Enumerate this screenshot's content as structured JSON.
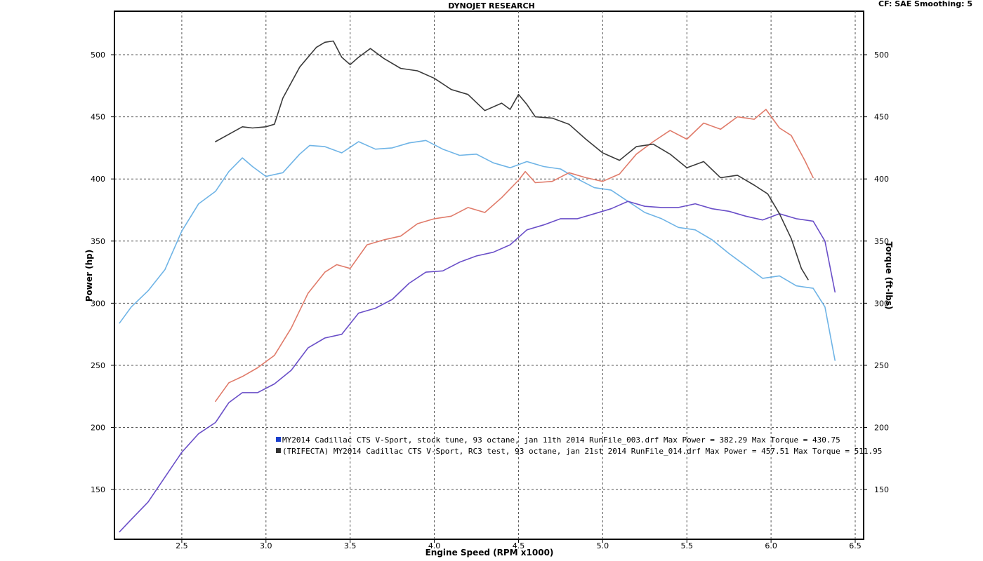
{
  "header": {
    "title": "DYNOJET RESEARCH",
    "settings": "CF: SAE  Smoothing: 5"
  },
  "chart_data": {
    "type": "line",
    "xlabel": "Engine Speed (RPM x1000)",
    "ylabel": "Power (hp)",
    "y2label": "Torque (ft-lbs)",
    "xlim": [
      2.1,
      6.55
    ],
    "ylim": [
      110,
      535
    ],
    "y2lim": [
      110,
      535
    ],
    "x_ticks": [
      "2.5",
      "3.0",
      "3.5",
      "4.0",
      "4.5",
      "5.0",
      "5.5",
      "6.0",
      "6.5"
    ],
    "y_ticks": [
      "150",
      "200",
      "250",
      "300",
      "350",
      "400",
      "450",
      "500"
    ],
    "y2_ticks": [
      "150",
      "200",
      "250",
      "300",
      "350",
      "400",
      "450",
      "500"
    ],
    "grid": true,
    "legend": [
      {
        "text": "MY2014 Cadillac CTS V-Sport, stock tune, 93 octane, jan 11th 2014 RunFile_003.drf Max Power = 382.29    Max Torque = 430.75",
        "color": "#1a3fcc"
      },
      {
        "text": "(TRIFECTA) MY2014 Cadillac CTS V-Sport, RC3 test, 93 octane, jan 21st 2014 RunFile_014.drf Max Power = 457.51    Max Torque = 511.95",
        "color": "#333333"
      }
    ],
    "series": [
      {
        "axis": "y",
        "color": "#6fb4e6",
        "points": [
          [
            2.13,
            284
          ],
          [
            2.2,
            297
          ],
          [
            2.3,
            310
          ],
          [
            2.4,
            327
          ],
          [
            2.5,
            358
          ],
          [
            2.6,
            380
          ],
          [
            2.7,
            390
          ],
          [
            2.78,
            406
          ],
          [
            2.86,
            417
          ],
          [
            2.92,
            410
          ],
          [
            3.0,
            402
          ],
          [
            3.1,
            405
          ],
          [
            3.2,
            420
          ],
          [
            3.26,
            427
          ],
          [
            3.35,
            426
          ],
          [
            3.45,
            421
          ],
          [
            3.55,
            430
          ],
          [
            3.65,
            424
          ],
          [
            3.75,
            425
          ],
          [
            3.85,
            429
          ],
          [
            3.95,
            431
          ],
          [
            4.05,
            424
          ],
          [
            4.15,
            419
          ],
          [
            4.25,
            420
          ],
          [
            4.35,
            413
          ],
          [
            4.45,
            409
          ],
          [
            4.55,
            414
          ],
          [
            4.65,
            410
          ],
          [
            4.75,
            408
          ],
          [
            4.85,
            400
          ],
          [
            4.95,
            393
          ],
          [
            5.05,
            391
          ],
          [
            5.15,
            382
          ],
          [
            5.25,
            373
          ],
          [
            5.35,
            368
          ],
          [
            5.45,
            361
          ],
          [
            5.55,
            359
          ],
          [
            5.65,
            351
          ],
          [
            5.75,
            340
          ],
          [
            5.85,
            330
          ],
          [
            5.95,
            320
          ],
          [
            6.05,
            322
          ],
          [
            6.15,
            314
          ],
          [
            6.25,
            312
          ],
          [
            6.32,
            297
          ],
          [
            6.38,
            254
          ]
        ]
      },
      {
        "axis": "y2",
        "color": "#e07b6a",
        "points": [
          [
            2.7,
            221
          ],
          [
            2.78,
            236
          ],
          [
            2.86,
            241
          ],
          [
            2.95,
            248
          ],
          [
            3.05,
            258
          ],
          [
            3.15,
            280
          ],
          [
            3.25,
            308
          ],
          [
            3.35,
            325
          ],
          [
            3.42,
            331
          ],
          [
            3.5,
            328
          ],
          [
            3.6,
            347
          ],
          [
            3.7,
            351
          ],
          [
            3.8,
            354
          ],
          [
            3.9,
            364
          ],
          [
            4.0,
            368
          ],
          [
            4.1,
            370
          ],
          [
            4.2,
            377
          ],
          [
            4.3,
            373
          ],
          [
            4.4,
            385
          ],
          [
            4.5,
            399
          ],
          [
            4.54,
            406
          ],
          [
            4.6,
            397
          ],
          [
            4.7,
            398
          ],
          [
            4.8,
            405
          ],
          [
            4.9,
            401
          ],
          [
            5.0,
            398
          ],
          [
            5.1,
            404
          ],
          [
            5.2,
            420
          ],
          [
            5.3,
            430
          ],
          [
            5.4,
            439
          ],
          [
            5.5,
            432
          ],
          [
            5.6,
            445
          ],
          [
            5.7,
            440
          ],
          [
            5.8,
            450
          ],
          [
            5.9,
            448
          ],
          [
            5.97,
            456
          ],
          [
            6.05,
            441
          ],
          [
            6.12,
            435
          ],
          [
            6.2,
            415
          ],
          [
            6.25,
            401
          ]
        ]
      },
      {
        "axis": "y",
        "color": "#6a4fc8",
        "points": [
          [
            2.13,
            116
          ],
          [
            2.2,
            126
          ],
          [
            2.3,
            140
          ],
          [
            2.4,
            160
          ],
          [
            2.5,
            180
          ],
          [
            2.6,
            195
          ],
          [
            2.7,
            204
          ],
          [
            2.78,
            220
          ],
          [
            2.86,
            228
          ],
          [
            2.95,
            228
          ],
          [
            3.05,
            235
          ],
          [
            3.15,
            246
          ],
          [
            3.25,
            264
          ],
          [
            3.35,
            272
          ],
          [
            3.45,
            275
          ],
          [
            3.55,
            292
          ],
          [
            3.65,
            296
          ],
          [
            3.75,
            303
          ],
          [
            3.85,
            316
          ],
          [
            3.95,
            325
          ],
          [
            4.05,
            326
          ],
          [
            4.15,
            333
          ],
          [
            4.25,
            338
          ],
          [
            4.35,
            341
          ],
          [
            4.45,
            347
          ],
          [
            4.55,
            359
          ],
          [
            4.65,
            363
          ],
          [
            4.75,
            368
          ],
          [
            4.85,
            368
          ],
          [
            4.95,
            372
          ],
          [
            5.05,
            376
          ],
          [
            5.15,
            382
          ],
          [
            5.25,
            378
          ],
          [
            5.35,
            377
          ],
          [
            5.45,
            377
          ],
          [
            5.55,
            380
          ],
          [
            5.65,
            376
          ],
          [
            5.75,
            374
          ],
          [
            5.85,
            370
          ],
          [
            5.95,
            367
          ],
          [
            6.05,
            372
          ],
          [
            6.15,
            368
          ],
          [
            6.25,
            366
          ],
          [
            6.32,
            350
          ],
          [
            6.38,
            309
          ]
        ]
      },
      {
        "axis": "y2",
        "color": "#3a3a3a",
        "points": [
          [
            2.7,
            430
          ],
          [
            2.78,
            436
          ],
          [
            2.86,
            442
          ],
          [
            2.92,
            441
          ],
          [
            3.0,
            442
          ],
          [
            3.05,
            444
          ],
          [
            3.1,
            465
          ],
          [
            3.2,
            490
          ],
          [
            3.3,
            506
          ],
          [
            3.35,
            510
          ],
          [
            3.4,
            511
          ],
          [
            3.45,
            498
          ],
          [
            3.5,
            492
          ],
          [
            3.55,
            498
          ],
          [
            3.62,
            505
          ],
          [
            3.7,
            497
          ],
          [
            3.8,
            489
          ],
          [
            3.9,
            487
          ],
          [
            4.0,
            481
          ],
          [
            4.1,
            472
          ],
          [
            4.2,
            468
          ],
          [
            4.3,
            455
          ],
          [
            4.4,
            461
          ],
          [
            4.45,
            456
          ],
          [
            4.5,
            468
          ],
          [
            4.55,
            460
          ],
          [
            4.6,
            450
          ],
          [
            4.7,
            449
          ],
          [
            4.8,
            444
          ],
          [
            4.9,
            432
          ],
          [
            5.0,
            421
          ],
          [
            5.1,
            415
          ],
          [
            5.2,
            426
          ],
          [
            5.3,
            428
          ],
          [
            5.4,
            420
          ],
          [
            5.5,
            409
          ],
          [
            5.6,
            414
          ],
          [
            5.7,
            401
          ],
          [
            5.8,
            403
          ],
          [
            5.9,
            395
          ],
          [
            5.98,
            388
          ],
          [
            6.05,
            372
          ],
          [
            6.12,
            352
          ],
          [
            6.18,
            328
          ],
          [
            6.22,
            319
          ]
        ]
      }
    ]
  }
}
